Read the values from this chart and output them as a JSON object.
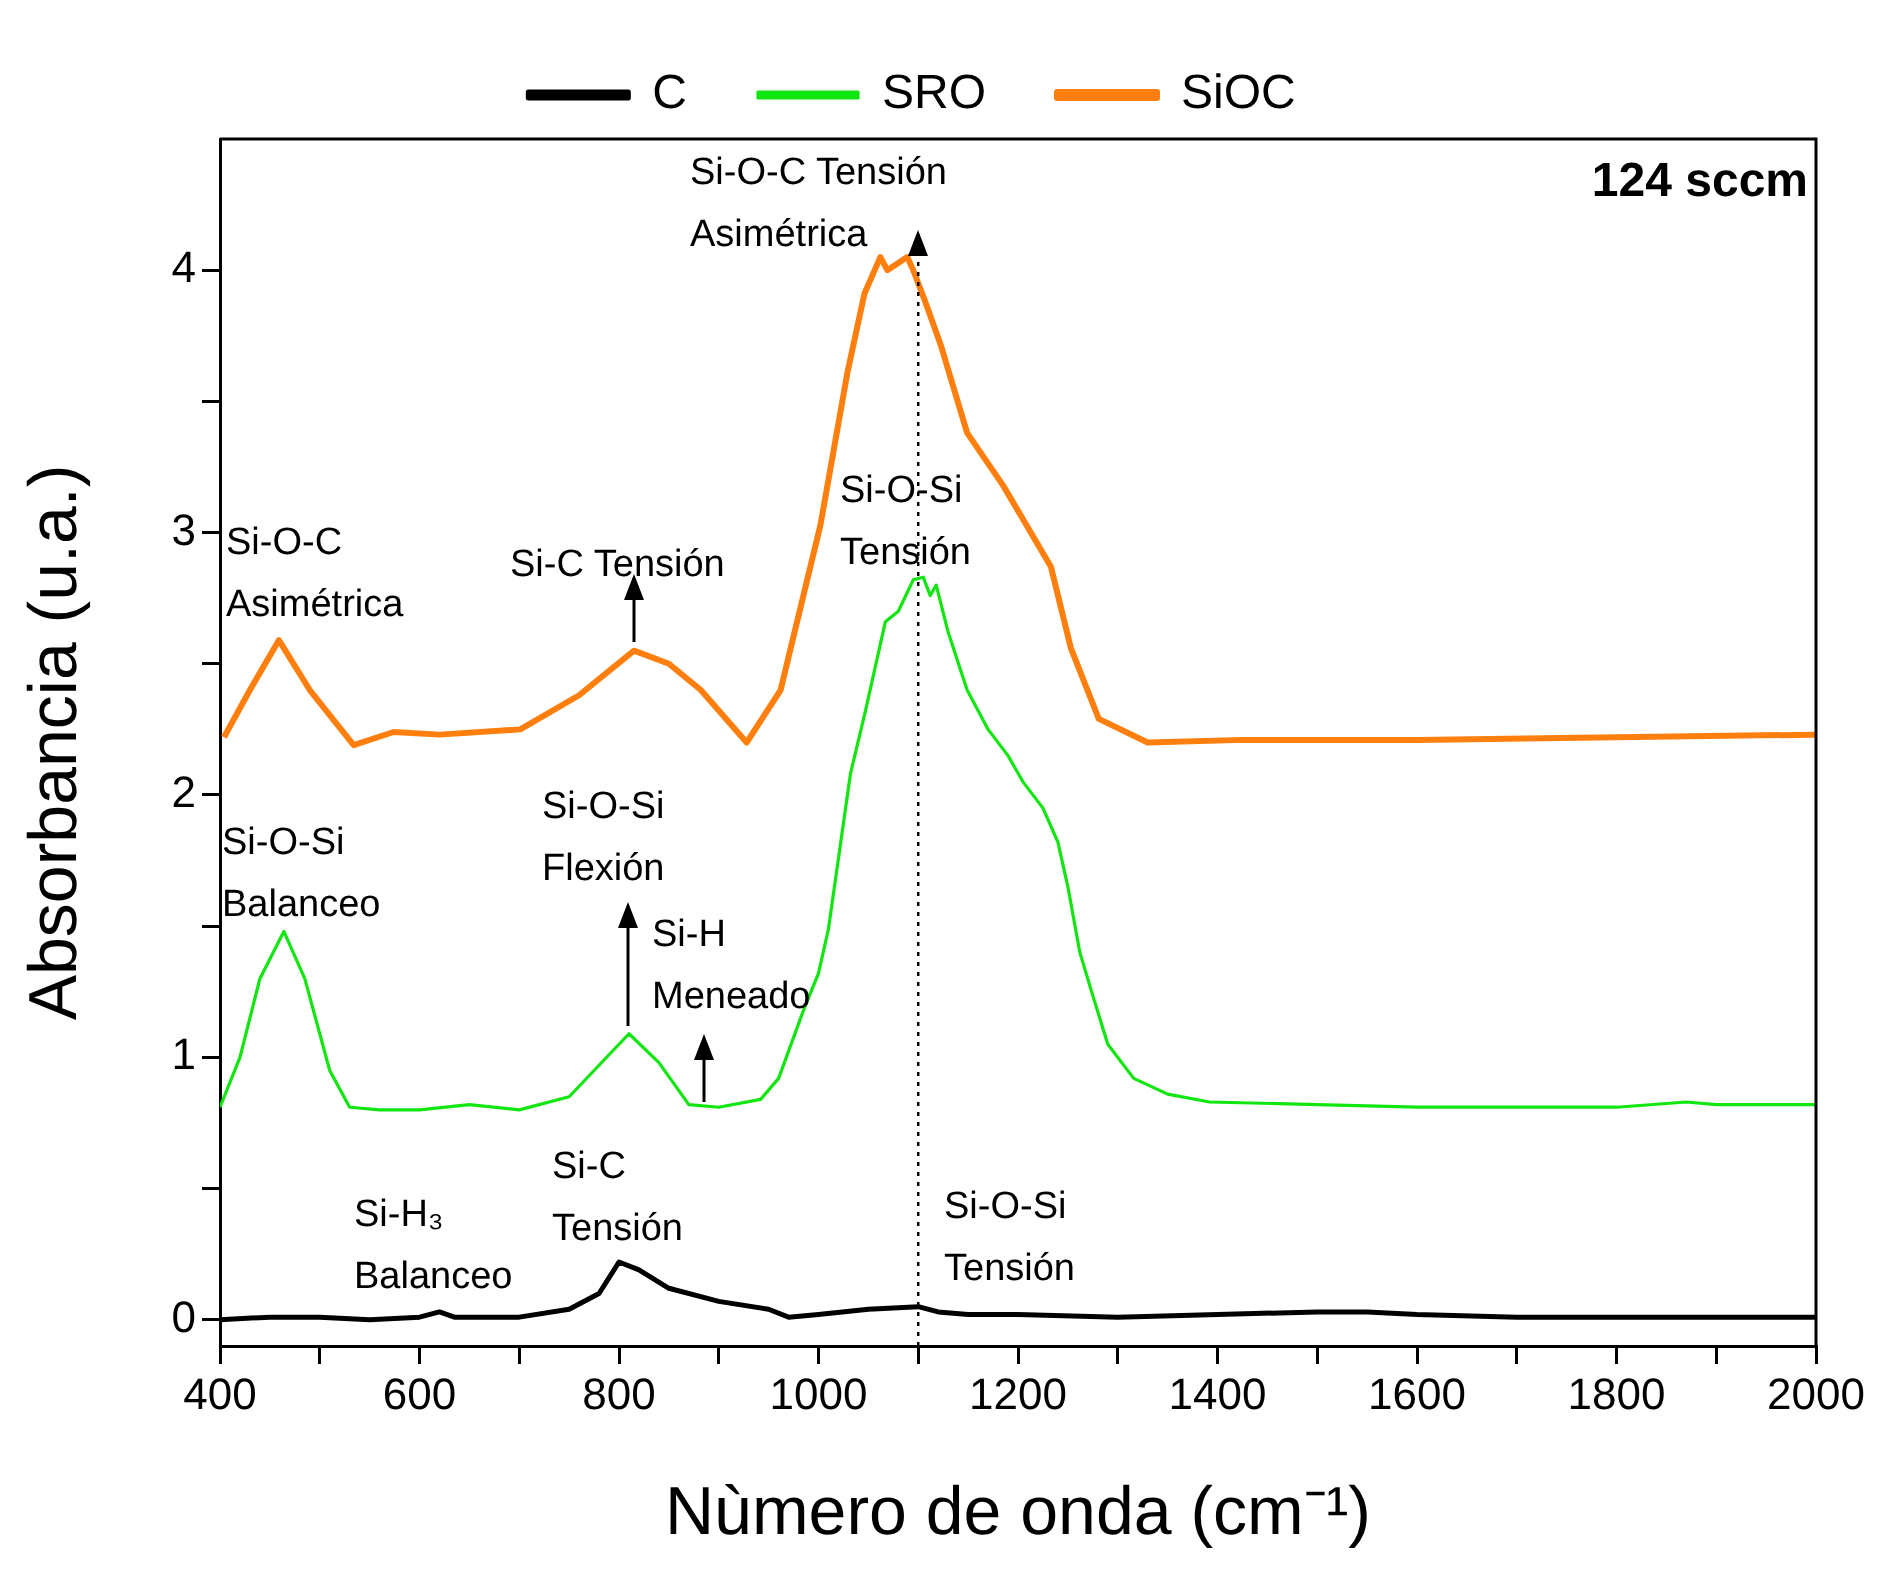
{
  "chart_data": {
    "type": "line",
    "xlabel": "Nùmero de onda (cm⁻¹)",
    "ylabel": "Absorbancia (u.a.)",
    "xlim": [
      400,
      2000
    ],
    "ylim": [
      -0.1,
      4.5
    ],
    "xticks": [
      400,
      {
        "value": 500,
        "label": null
      },
      600,
      {
        "value": 700,
        "label": null
      },
      800,
      {
        "value": 900,
        "label": null
      },
      1000,
      {
        "value": 1100,
        "label": null
      },
      1200,
      {
        "value": 1300,
        "label": null
      },
      1400,
      {
        "value": 1500,
        "label": null
      },
      1600,
      {
        "value": 1700,
        "label": null
      },
      1800,
      {
        "value": 1900,
        "label": null
      },
      2000
    ],
    "yticks": [
      0,
      {
        "value": 0.5,
        "label": null
      },
      1,
      {
        "value": 1.5,
        "label": null
      },
      2,
      {
        "value": 2.5,
        "label": null
      },
      3,
      {
        "value": 3.5,
        "label": null
      },
      4
    ],
    "legend": "top",
    "marker": "none",
    "series": [
      {
        "name": "C",
        "color": "#000000",
        "x": [
          400,
          450,
          500,
          550,
          600,
          620,
          635,
          700,
          750,
          780,
          800,
          820,
          850,
          900,
          950,
          970,
          1000,
          1050,
          1100,
          1120,
          1150,
          1200,
          1300,
          1400,
          1500,
          1550,
          1600,
          1700,
          1800,
          1900,
          2000
        ],
        "values": [
          0.0,
          0.01,
          0.01,
          0.0,
          0.01,
          0.03,
          0.01,
          0.01,
          0.04,
          0.1,
          0.22,
          0.19,
          0.12,
          0.07,
          0.04,
          0.01,
          0.02,
          0.04,
          0.05,
          0.03,
          0.02,
          0.02,
          0.01,
          0.02,
          0.03,
          0.03,
          0.02,
          0.01,
          0.01,
          0.01,
          0.01
        ]
      },
      {
        "name": "SRO",
        "color": "#11e611",
        "x": [
          400,
          420,
          440,
          464,
          485,
          510,
          530,
          560,
          600,
          650,
          700,
          750,
          780,
          810,
          840,
          870,
          900,
          942,
          960,
          985,
          1000,
          1010,
          1032,
          1047,
          1067,
          1080,
          1095,
          1105,
          1112,
          1118,
          1130,
          1149,
          1170,
          1190,
          1205,
          1225,
          1240,
          1250,
          1262,
          1273,
          1290,
          1316,
          1350,
          1392,
          1500,
          1600,
          1700,
          1800,
          1870,
          1900,
          2000
        ],
        "values": [
          0.81,
          1.0,
          1.3,
          1.48,
          1.3,
          0.95,
          0.81,
          0.8,
          0.8,
          0.82,
          0.8,
          0.85,
          0.97,
          1.09,
          0.98,
          0.82,
          0.81,
          0.84,
          0.92,
          1.18,
          1.32,
          1.49,
          2.08,
          2.32,
          2.66,
          2.7,
          2.82,
          2.83,
          2.76,
          2.8,
          2.62,
          2.4,
          2.25,
          2.15,
          2.05,
          1.95,
          1.82,
          1.65,
          1.4,
          1.26,
          1.05,
          0.92,
          0.86,
          0.83,
          0.82,
          0.81,
          0.81,
          0.81,
          0.83,
          0.82,
          0.82
        ]
      },
      {
        "name": "SiOC",
        "color": "#ff7f0e",
        "x": [
          404,
          430,
          459,
          490,
          534,
          574,
          620,
          701,
          760,
          815,
          850,
          882,
          928,
          962,
          1002,
          1029,
          1046,
          1062,
          1069,
          1089,
          1095,
          1107,
          1123,
          1149,
          1185,
          1233,
          1253,
          1281,
          1330,
          1426,
          1600,
          1800,
          2000
        ],
        "values": [
          2.22,
          2.4,
          2.59,
          2.4,
          2.19,
          2.24,
          2.23,
          2.25,
          2.38,
          2.55,
          2.5,
          2.4,
          2.2,
          2.4,
          3.03,
          3.61,
          3.91,
          4.05,
          4.0,
          4.05,
          4.0,
          3.88,
          3.71,
          3.38,
          3.18,
          2.87,
          2.56,
          2.29,
          2.2,
          2.21,
          2.21,
          2.22,
          2.23
        ]
      }
    ],
    "ref_lines": [
      {
        "axis": "x",
        "value": 1100,
        "color": "#000000",
        "line_style": "dotted"
      }
    ],
    "annotations": [
      "124 sccm",
      {
        "text": "Si-O-C Tensión\nAsimétrica",
        "x": 1100,
        "y": 4.0
      },
      "Si-O-C\nAsimétrica",
      {
        "text": "Si-C Tensión",
        "x": 815,
        "y": 2.55
      },
      "Si-O-Si\nTensión",
      "Si-O-Si\nBalanceo",
      {
        "text": "Si-O-Si\nFlexión",
        "x": 810,
        "y": 1.09
      },
      {
        "text": "Si-H\nMeneado",
        "x": 886,
        "y": 0.8
      },
      "Si-H₃\nBalanceo",
      "Si-C\nTensión",
      "Si-O-Si\nTensión"
    ]
  }
}
